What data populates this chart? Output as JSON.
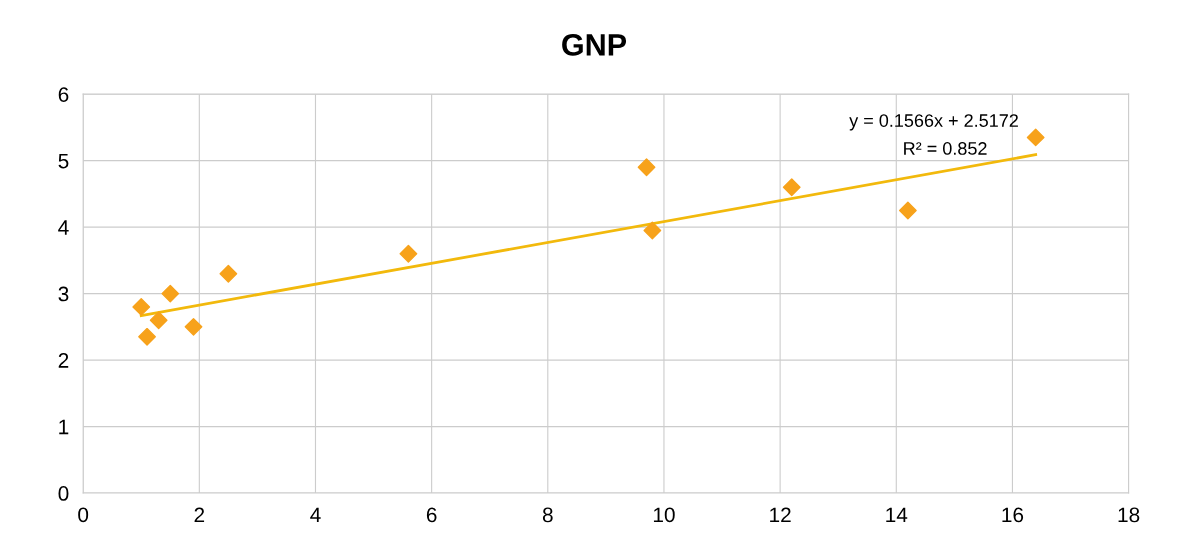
{
  "chart_data": {
    "type": "scatter",
    "title": "GNP",
    "series": [
      {
        "color": "#f7a21b",
        "marker": "diamond",
        "x": [
          1.0,
          1.1,
          1.3,
          1.5,
          1.9,
          2.5,
          5.6,
          9.7,
          9.8,
          12.2,
          14.2,
          16.4
        ],
        "values": [
          2.8,
          2.35,
          2.6,
          3.0,
          2.5,
          3.3,
          3.6,
          4.9,
          3.95,
          4.6,
          4.25,
          5.35
        ]
      },
      {
        "type": "line",
        "color": "#f2b90c",
        "marker": "none",
        "x": [
          1.0,
          16.4
        ],
        "values": [
          2.67,
          5.09
        ]
      }
    ],
    "annotations": [
      "y = 0.1566x + 2.5172",
      "R² = 0.852"
    ],
    "xlim": [
      0,
      18
    ],
    "xticks": [
      0,
      2,
      4,
      6,
      8,
      10,
      12,
      14,
      16,
      18
    ],
    "ylim": [
      0,
      6
    ],
    "yticks": [
      0,
      1,
      2,
      3,
      4,
      5,
      6
    ],
    "grid": true,
    "legend": false
  }
}
